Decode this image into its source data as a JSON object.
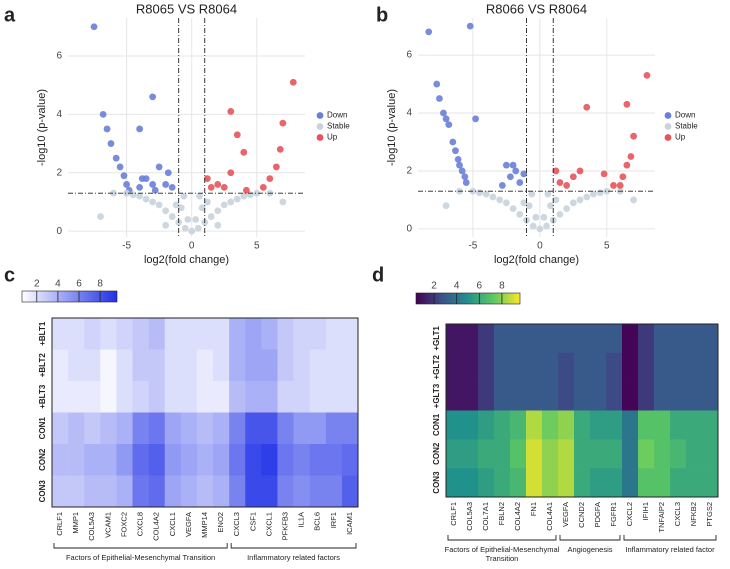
{
  "chart_data": [
    {
      "type": "scatter",
      "panel": "a",
      "title": "R8065 VS R8064",
      "xlabel": "log2(fold change)",
      "ylabel": "-log10 (p-value)",
      "xlim": [
        -9.5,
        8.7
      ],
      "ylim": [
        -0.2,
        7.3
      ],
      "xticks": [
        -5,
        0,
        5
      ],
      "yticks": [
        0,
        2,
        4,
        6
      ],
      "grid": true,
      "vlines": [
        -1,
        1
      ],
      "hline": 1.3,
      "series": [
        {
          "name": "Down",
          "color": "#6a80d8",
          "x": [
            -7.5,
            -3,
            -6.8,
            -6.5,
            -4,
            -6.2,
            -5.8,
            -5.5,
            -5.2,
            -5,
            -4.8,
            -3.5,
            -3,
            -2.5,
            -2,
            -1.8,
            -1.5,
            -2.8,
            -4,
            -3.8
          ],
          "y": [
            7.0,
            4.6,
            4.0,
            3.5,
            3.5,
            3.0,
            2.5,
            2.2,
            1.9,
            1.6,
            1.4,
            1.8,
            1.6,
            2.2,
            1.6,
            2.0,
            1.5,
            1.4,
            1.5,
            1.8
          ]
        },
        {
          "name": "Stable",
          "color": "#c9d3dc",
          "x": [
            0,
            -0.5,
            0.5,
            -1,
            1,
            -1.5,
            1.5,
            -2,
            2,
            -2.5,
            2.5,
            -3,
            3,
            -3.5,
            3.5,
            -4,
            4,
            -0.8,
            0.8,
            -0.6,
            0.6,
            -1.2,
            1.2,
            -4.5,
            4.5,
            -0.3,
            0.3,
            -2,
            2,
            -5,
            5,
            -6,
            6,
            -7,
            7
          ],
          "y": [
            0,
            0.1,
            0.1,
            0.3,
            0.3,
            0.5,
            0.5,
            0.7,
            0.7,
            0.9,
            0.9,
            1.0,
            1.0,
            1.1,
            1.1,
            1.2,
            1.2,
            0.8,
            0.8,
            1.2,
            1.2,
            0.9,
            1.0,
            1.25,
            1.25,
            0.4,
            0.4,
            0.2,
            0.2,
            1.3,
            1.3,
            1.3,
            1.3,
            0.5,
            1.0
          ]
        },
        {
          "name": "Up",
          "color": "#e8535a",
          "x": [
            7.8,
            3,
            7,
            3.5,
            4,
            6.5,
            6,
            5.5,
            3,
            1.5,
            2,
            4.2,
            2.5,
            1.2,
            6.8
          ],
          "y": [
            5.1,
            4.1,
            3.7,
            3.3,
            2.7,
            2.2,
            1.8,
            1.5,
            2.0,
            1.5,
            1.6,
            1.4,
            1.5,
            1.8,
            2.8
          ]
        }
      ]
    },
    {
      "type": "scatter",
      "panel": "b",
      "title": "R8066 VS R8064",
      "xlabel": "log2(fold change)",
      "ylabel": "-log10 (p-value)",
      "xlim": [
        -9.1,
        8.6
      ],
      "ylim": [
        -0.28,
        7.28
      ],
      "xticks": [
        -5,
        0,
        5
      ],
      "yticks": [
        0,
        2,
        4,
        6
      ],
      "grid": true,
      "vlines": [
        -1,
        1
      ],
      "hline": 1.3,
      "series": [
        {
          "name": "Down",
          "color": "#6a80d8",
          "x": [
            -8.3,
            -5.2,
            -4.8,
            -7.7,
            -7.5,
            -7.2,
            -7,
            -6.8,
            -6.5,
            -6.3,
            -6.1,
            -6,
            -5.8,
            -5.6,
            -5.5,
            -2.5,
            -2,
            -1.8,
            -2.2,
            -1.5,
            -2.8,
            -1.2
          ],
          "y": [
            6.8,
            7.0,
            3.8,
            5.0,
            4.5,
            4.0,
            3.8,
            3.6,
            3.0,
            2.7,
            2.4,
            2.2,
            2.0,
            1.8,
            1.6,
            2.2,
            2.2,
            2.0,
            1.8,
            1.6,
            1.5,
            1.9
          ]
        },
        {
          "name": "Stable",
          "color": "#c9d3dc",
          "x": [
            0,
            -0.5,
            0.5,
            -1,
            1,
            -1.5,
            1.5,
            -2,
            2,
            -2.5,
            2.5,
            -3,
            3,
            -3.5,
            3.5,
            -4,
            4,
            -0.8,
            0.8,
            -0.6,
            0.6,
            -1.2,
            1.2,
            -4.5,
            4.5,
            -0.3,
            0.3,
            -5,
            5,
            -6,
            6,
            -7,
            7
          ],
          "y": [
            0,
            0.1,
            0.1,
            0.3,
            0.3,
            0.5,
            0.5,
            0.7,
            0.7,
            0.9,
            0.9,
            1.0,
            1.0,
            1.1,
            1.1,
            1.2,
            1.2,
            0.8,
            0.8,
            1.2,
            1.2,
            0.9,
            1.0,
            1.25,
            1.25,
            0.4,
            0.4,
            1.3,
            1.3,
            1.3,
            1.3,
            0.8,
            1.0
          ]
        },
        {
          "name": "Up",
          "color": "#e8535a",
          "x": [
            8,
            6.5,
            3.5,
            7,
            6.8,
            6.5,
            6.2,
            6,
            4.8,
            3,
            2.5,
            1.5,
            2,
            5.5,
            1.2
          ],
          "y": [
            5.3,
            4.3,
            4.2,
            3.2,
            2.5,
            2.2,
            1.8,
            1.5,
            1.9,
            2.0,
            1.8,
            1.6,
            1.5,
            1.5,
            2.0
          ]
        }
      ]
    },
    {
      "type": "heatmap",
      "panel": "c",
      "rows": [
        "+BLT1",
        "+BLT2",
        "+BLT3",
        "CON1",
        "CON2",
        "CON3"
      ],
      "columns": [
        "CRLF1",
        "MMP1",
        "COL5A3",
        "VCAM1",
        "FOXC2",
        "CXCL8",
        "COL4A2",
        "CXCL1",
        "VEGFA",
        "MMP14",
        "ENO2",
        "CXCL3",
        "CSF1",
        "CXCL1",
        "PFKFB3",
        "IL1A",
        "BCL6",
        "IRF1",
        "ICAM1"
      ],
      "values": [
        [
          2,
          2,
          2.5,
          2,
          2.5,
          3,
          3.5,
          2,
          2,
          2,
          2,
          4,
          4.5,
          4,
          3,
          2.5,
          2.5,
          2,
          2
        ],
        [
          1.5,
          2,
          2,
          1,
          2,
          3,
          3,
          2,
          2,
          1.5,
          2,
          4,
          4.5,
          4.5,
          3,
          2.5,
          2,
          2,
          2
        ],
        [
          1.5,
          1.5,
          1.5,
          1,
          2,
          2.5,
          3,
          2,
          2,
          1.5,
          1.5,
          3.5,
          4,
          4,
          2.5,
          2.5,
          2,
          2,
          2
        ],
        [
          3,
          3.5,
          3,
          3.5,
          4,
          6,
          6.5,
          4.5,
          4,
          3.5,
          4,
          6,
          8,
          8,
          6,
          5,
          5,
          6,
          6
        ],
        [
          3.5,
          3.5,
          4,
          4,
          5,
          7,
          7.5,
          5,
          4.5,
          4,
          4.5,
          6.5,
          8.5,
          9,
          6.5,
          6,
          6.5,
          6.5,
          7
        ],
        [
          3,
          3,
          3.5,
          3.5,
          4,
          6.5,
          7,
          4.5,
          4,
          3.5,
          4,
          6,
          8.5,
          8.5,
          6,
          5.5,
          6,
          6,
          7.5
        ]
      ],
      "colormap": [
        "#ffffff",
        "#1f30e6"
      ],
      "clim": [
        0.6,
        9.6
      ],
      "cticks": [
        2,
        4,
        6,
        8
      ],
      "groups": [
        {
          "label": "Factors of Epithelial-Mesenchymal Transition",
          "start": 0,
          "end": 10
        },
        {
          "label": "Inflammatory related factors",
          "start": 11,
          "end": 18
        }
      ]
    },
    {
      "type": "heatmap",
      "panel": "d",
      "rows": [
        "+GLT1",
        "+GLT2",
        "+GLT3",
        "CON1",
        "CON2",
        "CON3"
      ],
      "columns": [
        "CRLF1",
        "COL5A3",
        "COL7A1",
        "FBLN2",
        "COL4A2",
        "FN1",
        "COL4A1",
        "VEGFA",
        "CCND2",
        "PDGFA",
        "FGFR1",
        "CXCL2",
        "IFIH1",
        "TNFAIP2",
        "CXCL3",
        "NFKB2",
        "PTGS2"
      ],
      "values": [
        [
          1,
          1,
          2,
          3,
          3,
          3,
          3,
          3,
          3,
          3,
          3,
          0.5,
          2,
          3,
          3,
          3,
          3
        ],
        [
          1,
          1,
          2,
          3,
          3,
          3,
          3,
          2.5,
          3,
          3,
          2.5,
          0.5,
          2,
          3,
          3,
          3,
          3
        ],
        [
          1,
          1,
          2,
          3,
          3,
          3,
          3,
          2.5,
          3,
          3,
          2.5,
          0.5,
          2,
          3,
          3,
          3,
          3
        ],
        [
          5,
          5,
          5.5,
          6,
          6.5,
          8.5,
          7.5,
          8,
          6,
          5.5,
          5.5,
          4,
          7,
          7,
          6,
          6,
          6
        ],
        [
          5.5,
          5.5,
          6,
          6,
          7,
          9,
          8,
          8.5,
          6,
          6,
          6,
          4,
          7.5,
          7,
          6.5,
          6,
          6
        ],
        [
          5,
          5,
          5.5,
          6,
          6.5,
          9,
          8,
          8.5,
          6,
          5.5,
          5.5,
          4,
          7,
          7,
          6,
          6,
          6
        ]
      ],
      "colormap": [
        "#440154",
        "#3b528b",
        "#21918c",
        "#5ec962",
        "#fde725"
      ],
      "clim": [
        0.4,
        9.6
      ],
      "cticks": [
        2,
        4,
        6,
        8
      ],
      "groups": [
        {
          "label": "Factors of Epithelial-Mesenchymal Transition",
          "start": 0,
          "end": 6
        },
        {
          "label": "Angiogenesis",
          "start": 7,
          "end": 10
        },
        {
          "label": "Inflammatory related factor",
          "start": 11,
          "end": 16
        }
      ]
    }
  ]
}
